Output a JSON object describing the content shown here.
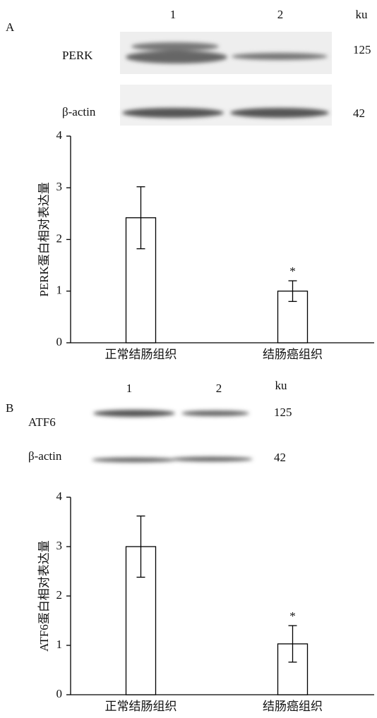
{
  "panels": [
    {
      "label": "A",
      "lanes": [
        "1",
        "2"
      ],
      "unit": "ku",
      "bands": [
        {
          "name": "PERK",
          "size": "125"
        },
        {
          "name": "β-actin",
          "size": "42"
        }
      ]
    },
    {
      "label": "B",
      "lanes": [
        "1",
        "2"
      ],
      "unit": "ku",
      "bands": [
        {
          "name": "ATF6",
          "size": "125"
        },
        {
          "name": "β-actin",
          "size": "42"
        }
      ]
    }
  ],
  "chart_data": [
    {
      "type": "bar",
      "y_label": "PERK蛋白相对表达量",
      "categories": [
        "正常结肠组织",
        "结肠癌组织"
      ],
      "values": [
        2.42,
        1.0
      ],
      "errors": [
        0.6,
        0.2
      ],
      "significance": [
        null,
        "*"
      ],
      "color": "#ffffff",
      "ylim": [
        0,
        4
      ],
      "yticks": [
        0,
        1,
        2,
        3,
        4
      ]
    },
    {
      "type": "bar",
      "y_label": "ATF6蛋白相对表达量",
      "categories": [
        "正常结肠组织",
        "结肠癌组织"
      ],
      "values": [
        3.0,
        1.03
      ],
      "errors": [
        0.62,
        0.37
      ],
      "significance": [
        null,
        "*"
      ],
      "color": "#ffffff",
      "ylim": [
        0,
        4
      ],
      "yticks": [
        0,
        1,
        2,
        3,
        4
      ]
    }
  ]
}
